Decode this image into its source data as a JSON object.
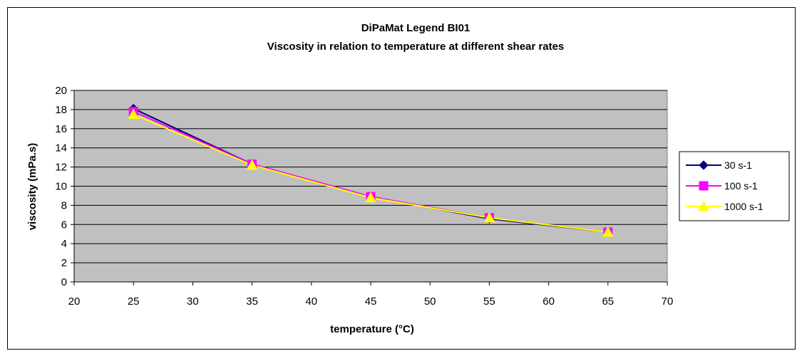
{
  "chart_data": {
    "type": "line",
    "title": "DiPaMat Legend BI01",
    "subtitle": "Viscosity in relation to temperature at different shear rates",
    "xlabel": "temperature (°C)",
    "ylabel": "viscosity (mPa.s)",
    "xlim": [
      20,
      70
    ],
    "ylim": [
      0,
      20
    ],
    "xticks": [
      20,
      25,
      30,
      35,
      40,
      45,
      50,
      55,
      60,
      65,
      70
    ],
    "yticks": [
      0,
      2,
      4,
      6,
      8,
      10,
      12,
      14,
      16,
      18,
      20
    ],
    "grid": "horizontal",
    "plot_background": "#c0c0c0",
    "legend_position": "right",
    "x": [
      25,
      35,
      45,
      55,
      65
    ],
    "series": [
      {
        "name": "30 s-1",
        "values": [
          18.1,
          12.3,
          8.9,
          6.6,
          5.2
        ],
        "color": "#000080",
        "marker": "diamond"
      },
      {
        "name": "100 s-1",
        "values": [
          17.8,
          12.3,
          8.9,
          6.7,
          5.2
        ],
        "color": "#ff00ff",
        "marker": "square"
      },
      {
        "name": "1000 s-1",
        "values": [
          17.5,
          12.2,
          8.8,
          6.7,
          5.2
        ],
        "color": "#ffff00",
        "marker": "triangle"
      }
    ]
  }
}
